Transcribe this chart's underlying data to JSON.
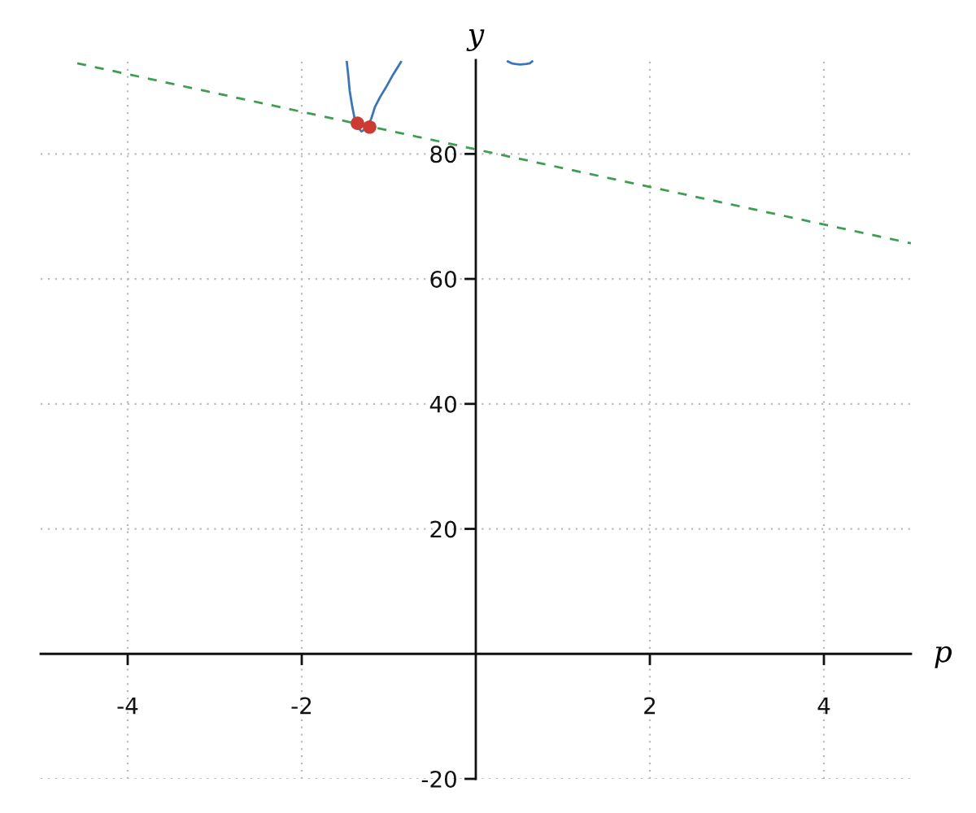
{
  "chart_data": {
    "type": "line",
    "xlabel": "p",
    "ylabel": "y",
    "xlim": [
      -5,
      5
    ],
    "ylim": [
      -20,
      95
    ],
    "xticks": [
      -4,
      -2,
      2,
      4
    ],
    "yticks": [
      -20,
      20,
      40,
      60,
      80
    ],
    "grid": true,
    "series": [
      {
        "color": "#3a76b5",
        "line_style": "solid",
        "marker": "none",
        "x": [
          -1.482,
          -1.465,
          -1.449,
          -1.42,
          -1.389,
          -1.35,
          -1.314,
          -1.252,
          -1.2,
          -1.159,
          -1.1,
          -1.034,
          -0.95,
          -0.86,
          -0.3,
          0.368,
          0.41,
          0.45,
          0.51,
          0.58,
          0.62,
          0.648
        ],
        "values": [
          94.7,
          92.5,
          90.1,
          87.6,
          85.4,
          84.2,
          83.6,
          84.1,
          85.7,
          87.5,
          89.1,
          90.6,
          92.7,
          94.7,
          null,
          94.8,
          94.5,
          94.4,
          94.3,
          94.4,
          94.5,
          94.8
        ]
      },
      {
        "type": "line",
        "color": "#3d9e52",
        "line_style": "dashed",
        "marker": "none",
        "x": [
          -4.58,
          5
        ],
        "values": [
          94.5,
          65.7
        ]
      },
      {
        "type": "scatter",
        "color": "#cc3b33",
        "marker": "circle",
        "x": [
          -1.36,
          -1.22
        ],
        "values": [
          84.9,
          84.3
        ]
      }
    ]
  }
}
